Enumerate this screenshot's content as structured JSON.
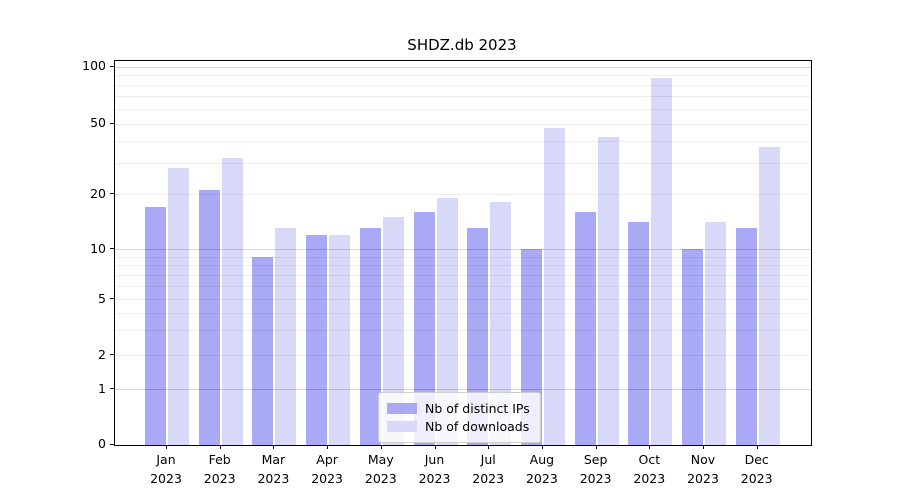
{
  "chart_data": {
    "type": "bar",
    "title": "SHDZ.db 2023",
    "categories": [
      "Jan 2023",
      "Feb 2023",
      "Mar 2023",
      "Apr 2023",
      "May 2023",
      "Jun 2023",
      "Jul 2023",
      "Aug 2023",
      "Sep 2023",
      "Oct 2023",
      "Nov 2023",
      "Dec 2023"
    ],
    "series": [
      {
        "name": "Nb of distinct IPs",
        "color": "#a9a9f5",
        "values": [
          17,
          21,
          9,
          12,
          13,
          16,
          13,
          10,
          16,
          14,
          10,
          13
        ]
      },
      {
        "name": "Nb of downloads",
        "color": "#d8d8f8",
        "values": [
          28,
          32,
          13,
          12,
          15,
          19,
          18,
          47,
          42,
          87,
          14,
          37
        ]
      }
    ],
    "xlabel": "",
    "ylabel": "",
    "yscale": "log-like",
    "yticks": [
      100,
      50,
      20,
      10,
      5,
      2,
      1,
      0
    ],
    "ylim": [
      0,
      110
    ],
    "grid": true,
    "legend_position": "lower center",
    "background_color": "#ffffff",
    "frame_color": "#000000"
  }
}
